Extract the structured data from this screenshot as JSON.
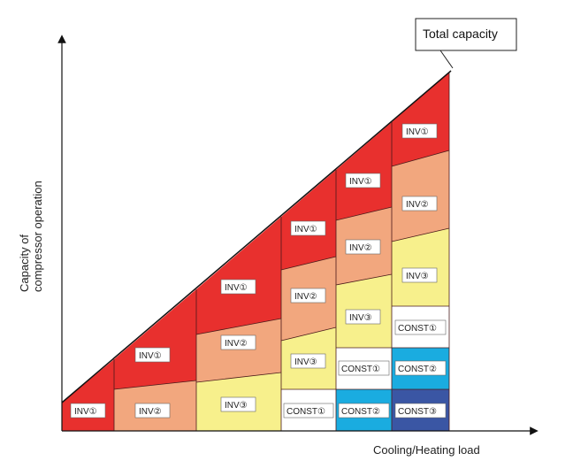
{
  "y_axis_label_line1": "Capacity of",
  "y_axis_label_line2": "compressor operation",
  "x_axis_label": "Cooling/Heating load",
  "total_capacity_label": "Total capacity",
  "labels": {
    "inv1": "INV①",
    "inv2": "INV②",
    "inv3": "INV③",
    "const1": "CONST①",
    "const2": "CONST②",
    "const3": "CONST③"
  },
  "colors": {
    "inv1": "#e8302e",
    "inv2": "#f2a77e",
    "inv3": "#f7f08c",
    "const1": "#ffffff",
    "const2": "#1aace0",
    "const3": "#3a56a4"
  }
}
